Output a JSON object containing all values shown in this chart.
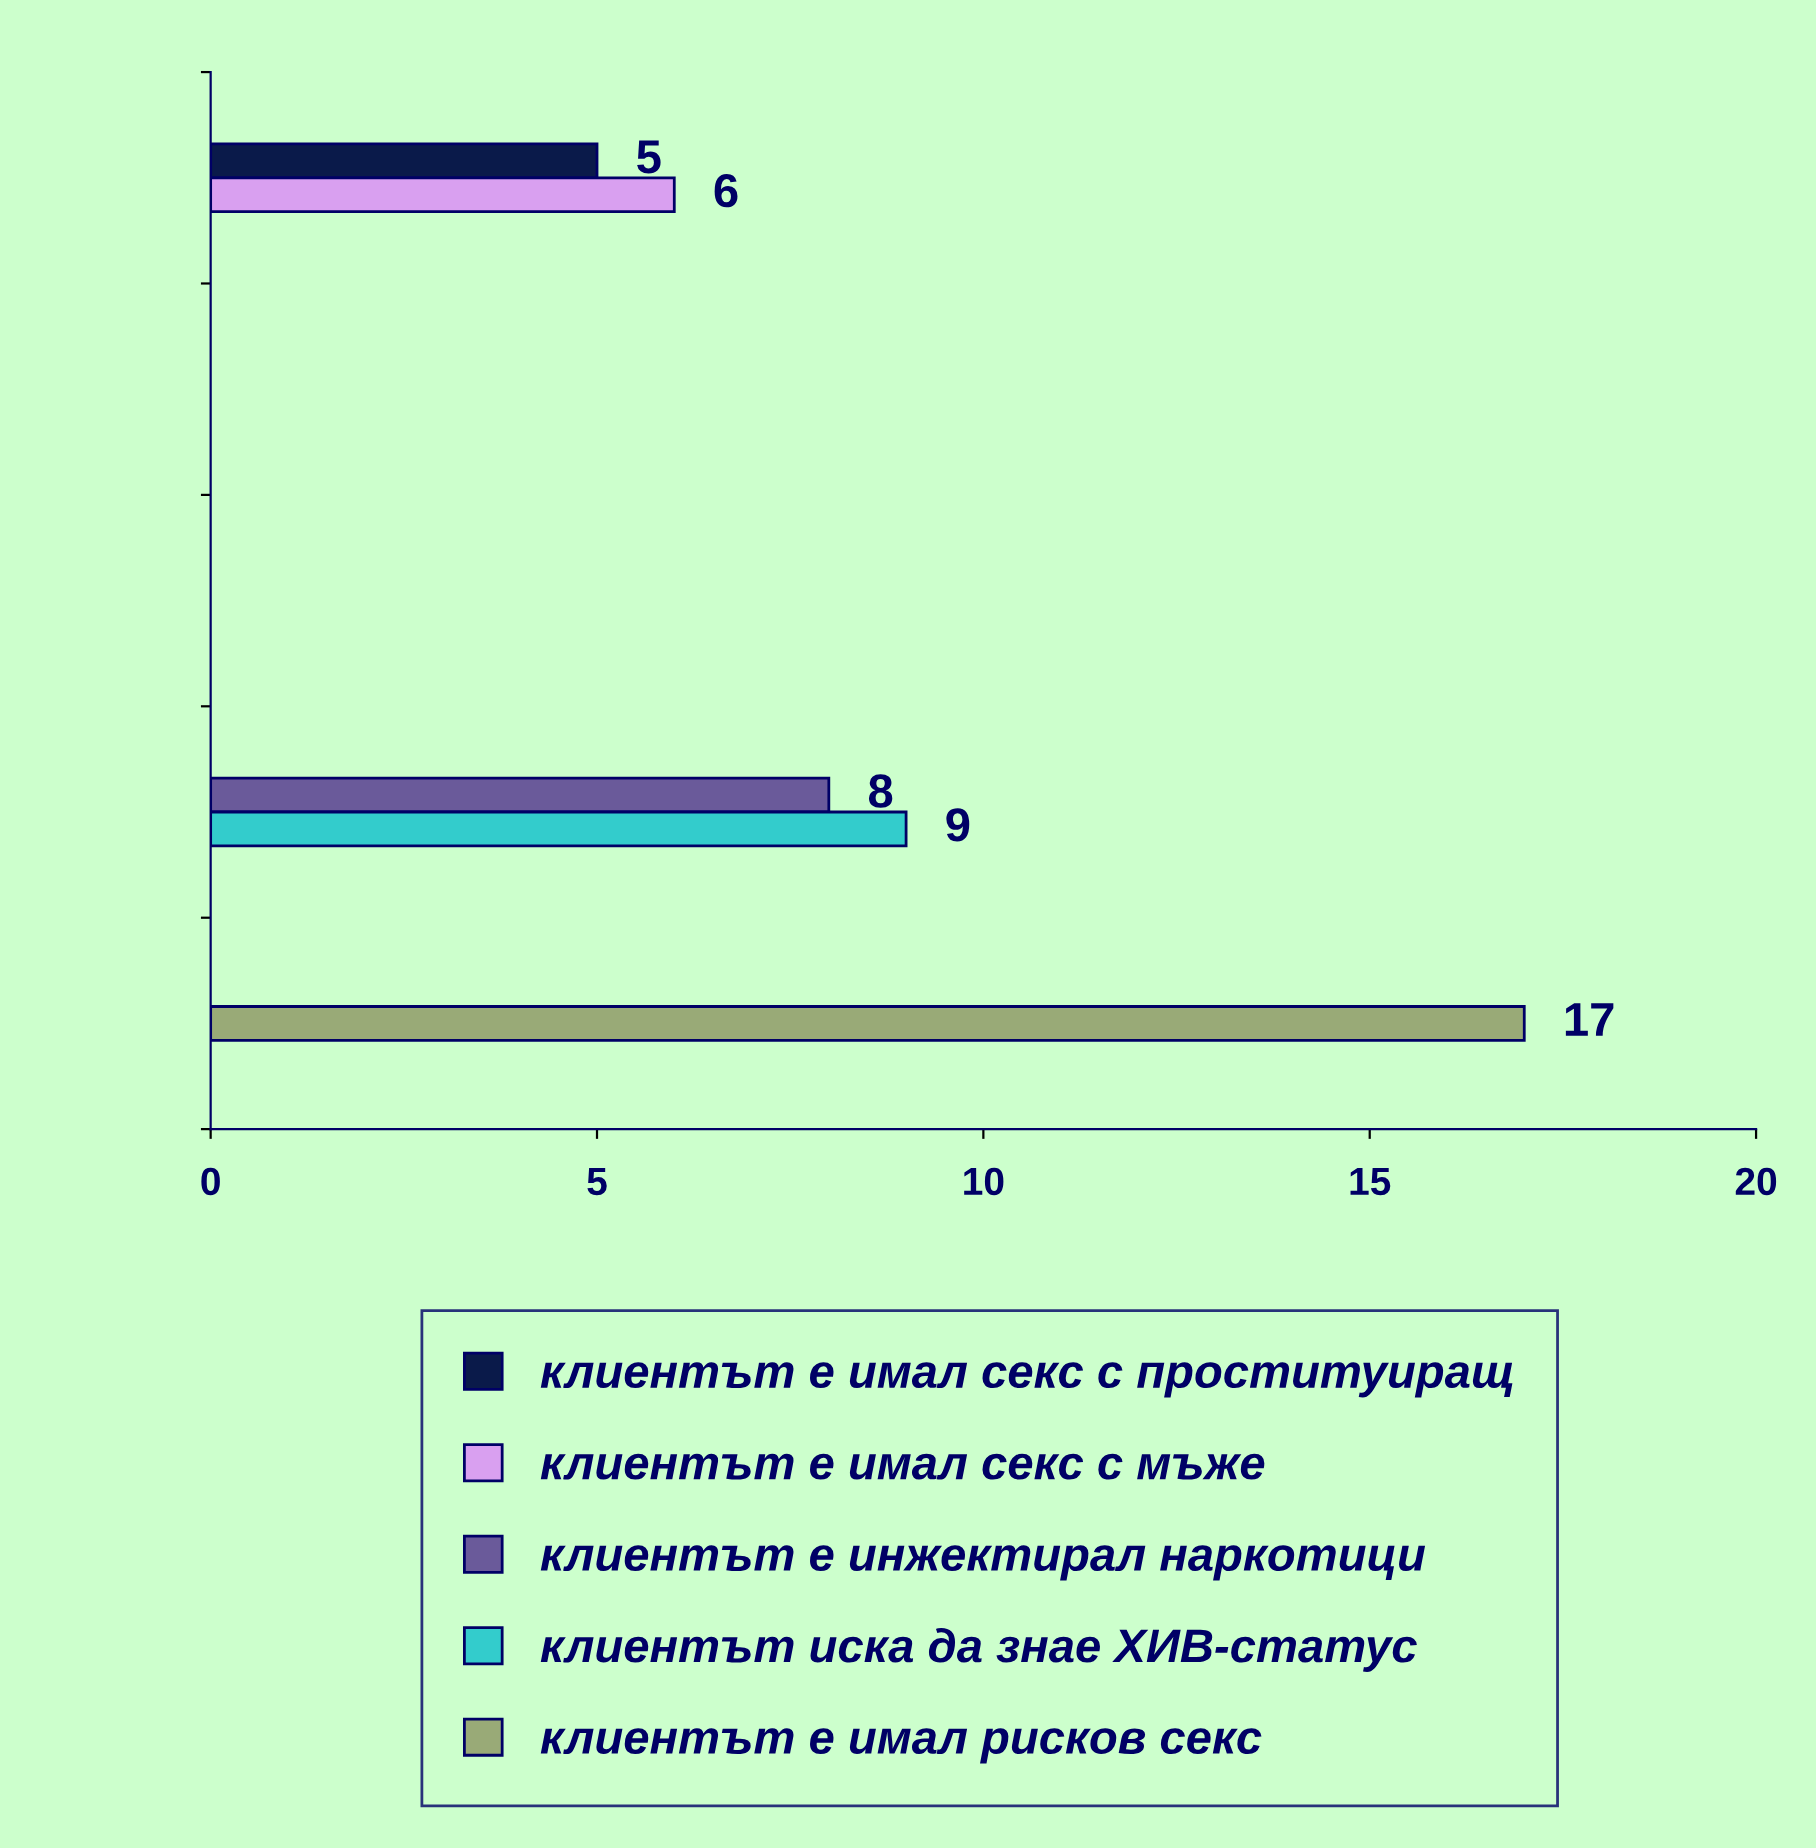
{
  "chart_data": {
    "type": "bar",
    "orientation": "horizontal",
    "categories": [
      null,
      null,
      null,
      null,
      null
    ],
    "series": [
      {
        "name": "клиентът е имал секс с проституиращ",
        "color": "#0a1a4a",
        "values": [
          5,
          null,
          null,
          null,
          null
        ]
      },
      {
        "name": "клиентът е имал секс с мъже",
        "color": "#d9a0f0",
        "values": [
          6,
          null,
          null,
          null,
          null
        ]
      },
      {
        "name": "клиентът е инжектирал наркотици",
        "color": "#6a5a9a",
        "values": [
          null,
          null,
          null,
          8,
          null
        ]
      },
      {
        "name": "клиентът иска да знае ХИВ-статус",
        "color": "#33cccc",
        "values": [
          null,
          null,
          null,
          9,
          null
        ]
      },
      {
        "name": "клиентът е имал рисков секс",
        "color": "#99aa77",
        "values": [
          null,
          null,
          null,
          null,
          17
        ]
      }
    ],
    "xlim": [
      0,
      20
    ],
    "xticks": [
      0,
      5,
      10,
      15,
      20
    ],
    "data_labels": true,
    "legend": "bottom",
    "grid": false
  }
}
